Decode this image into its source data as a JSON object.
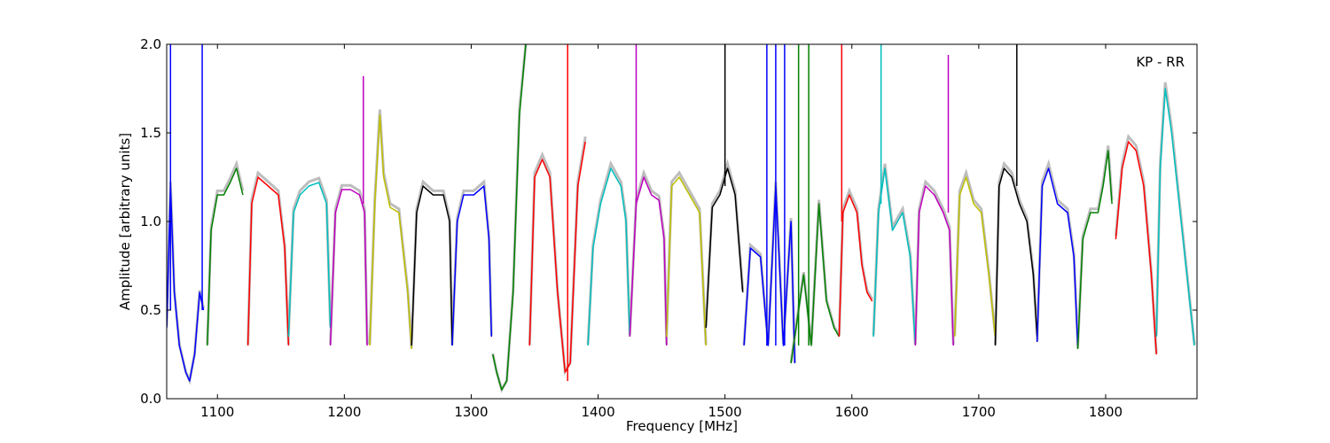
{
  "chart_data": {
    "type": "line",
    "title": "",
    "annotation": "KP - RR",
    "xlabel": "Frequency [MHz]",
    "ylabel": "Amplitude [arbitrary units]",
    "xlim": [
      1060,
      1872
    ],
    "ylim": [
      0.0,
      2.0
    ],
    "xticks": [
      1100,
      1200,
      1300,
      1400,
      1500,
      1600,
      1700,
      1800
    ],
    "yticks": [
      0.0,
      0.5,
      1.0,
      1.5,
      2.0
    ],
    "ytick_labels": [
      "0.0",
      "0.5",
      "1.0",
      "1.5",
      "2.0"
    ],
    "grid": false,
    "background_color": "#bdbdbd",
    "bands": [
      {
        "color": "#0000ff",
        "x": [
          1060,
          1063,
          1066,
          1070,
          1075,
          1078,
          1082,
          1086,
          1089
        ],
        "y": [
          0.4,
          1.2,
          0.6,
          0.3,
          0.15,
          0.1,
          0.25,
          0.6,
          0.5
        ]
      },
      {
        "color": "#008000",
        "x": [
          1092,
          1095,
          1100,
          1105,
          1110,
          1115,
          1120
        ],
        "y": [
          0.3,
          0.95,
          1.15,
          1.15,
          1.22,
          1.3,
          1.15
        ]
      },
      {
        "color": "#ff0000",
        "x": [
          1124,
          1127,
          1132,
          1140,
          1148,
          1153,
          1156
        ],
        "y": [
          0.3,
          1.1,
          1.25,
          1.2,
          1.15,
          0.85,
          0.3
        ]
      },
      {
        "color": "#00bfbf",
        "x": [
          1156,
          1160,
          1165,
          1172,
          1180,
          1186,
          1189
        ],
        "y": [
          0.35,
          1.05,
          1.15,
          1.2,
          1.22,
          1.1,
          0.4
        ]
      },
      {
        "color": "#bf00bf",
        "x": [
          1189,
          1193,
          1198,
          1205,
          1212,
          1216,
          1218
        ],
        "y": [
          0.3,
          1.05,
          1.18,
          1.18,
          1.15,
          1.05,
          0.3
        ]
      },
      {
        "color": "#bfbf00",
        "x": [
          1220,
          1224,
          1228,
          1231,
          1236,
          1243,
          1250,
          1253
        ],
        "y": [
          0.3,
          1.1,
          1.6,
          1.25,
          1.08,
          1.05,
          0.6,
          0.28
        ]
      },
      {
        "color": "#000000",
        "x": [
          1253,
          1257,
          1262,
          1270,
          1278,
          1283,
          1285
        ],
        "y": [
          0.3,
          1.05,
          1.2,
          1.15,
          1.15,
          1.0,
          0.3
        ]
      },
      {
        "color": "#0000ff",
        "x": [
          1285,
          1289,
          1294,
          1302,
          1310,
          1314,
          1316
        ],
        "y": [
          0.3,
          1.0,
          1.15,
          1.15,
          1.2,
          0.9,
          0.35
        ]
      },
      {
        "color": "#008000",
        "x": [
          1317,
          1320,
          1324,
          1328,
          1333,
          1338,
          1343
        ],
        "y": [
          0.25,
          0.15,
          0.05,
          0.1,
          0.6,
          1.6,
          2.0
        ]
      },
      {
        "color": "#ff0000",
        "x": [
          1346,
          1350,
          1356,
          1362,
          1368,
          1374,
          1378,
          1384,
          1390
        ],
        "y": [
          0.3,
          1.25,
          1.35,
          1.25,
          0.6,
          0.15,
          0.2,
          1.2,
          1.45
        ]
      },
      {
        "color": "#00bfbf",
        "x": [
          1392,
          1396,
          1402,
          1410,
          1418,
          1422,
          1425
        ],
        "y": [
          0.3,
          0.85,
          1.1,
          1.3,
          1.2,
          1.0,
          0.35
        ]
      },
      {
        "color": "#bf00bf",
        "x": [
          1425,
          1430,
          1436,
          1442,
          1448,
          1452,
          1454
        ],
        "y": [
          0.35,
          1.1,
          1.25,
          1.15,
          1.12,
          0.9,
          0.3
        ]
      },
      {
        "color": "#bfbf00",
        "x": [
          1454,
          1458,
          1464,
          1472,
          1480,
          1485
        ],
        "y": [
          0.35,
          1.2,
          1.25,
          1.15,
          1.05,
          0.3
        ]
      },
      {
        "color": "#000000",
        "x": [
          1485,
          1490,
          1496,
          1502,
          1508,
          1514
        ],
        "y": [
          0.4,
          1.08,
          1.15,
          1.3,
          1.15,
          0.6
        ]
      },
      {
        "color": "#0000ff",
        "x": [
          1515,
          1520,
          1528,
          1534,
          1540,
          1546,
          1552,
          1555
        ],
        "y": [
          0.3,
          0.85,
          0.8,
          0.3,
          1.2,
          0.3,
          1.0,
          0.2
        ]
      },
      {
        "color": "#008000",
        "x": [
          1552,
          1556,
          1562,
          1568,
          1574,
          1580,
          1586,
          1590
        ],
        "y": [
          0.2,
          0.4,
          0.7,
          0.3,
          1.1,
          0.55,
          0.4,
          0.35
        ]
      },
      {
        "color": "#ff0000",
        "x": [
          1590,
          1593,
          1598,
          1604,
          1608,
          1612,
          1616
        ],
        "y": [
          0.35,
          1.05,
          1.15,
          1.05,
          0.75,
          0.6,
          0.55
        ]
      },
      {
        "color": "#00bfbf",
        "x": [
          1617,
          1621,
          1626,
          1632,
          1640,
          1646,
          1650
        ],
        "y": [
          0.35,
          1.05,
          1.3,
          0.95,
          1.05,
          0.8,
          0.3
        ]
      },
      {
        "color": "#bf00bf",
        "x": [
          1650,
          1653,
          1658,
          1665,
          1672,
          1677,
          1680
        ],
        "y": [
          0.3,
          1.05,
          1.2,
          1.15,
          1.05,
          0.95,
          0.3
        ]
      },
      {
        "color": "#bfbf00",
        "x": [
          1681,
          1685,
          1690,
          1696,
          1702,
          1708,
          1713
        ],
        "y": [
          0.35,
          1.15,
          1.25,
          1.1,
          1.05,
          0.7,
          0.35
        ]
      },
      {
        "color": "#000000",
        "x": [
          1713,
          1716,
          1720,
          1726,
          1732,
          1738,
          1743,
          1746
        ],
        "y": [
          0.3,
          1.2,
          1.3,
          1.25,
          1.1,
          1.0,
          0.7,
          0.35
        ]
      },
      {
        "color": "#0000ff",
        "x": [
          1746,
          1750,
          1755,
          1762,
          1770,
          1775,
          1778
        ],
        "y": [
          0.32,
          1.2,
          1.3,
          1.1,
          1.05,
          0.8,
          0.3
        ]
      },
      {
        "color": "#008000",
        "x": [
          1778,
          1782,
          1788,
          1794,
          1798,
          1802,
          1805
        ],
        "y": [
          0.28,
          0.9,
          1.05,
          1.05,
          1.2,
          1.4,
          1.1
        ]
      },
      {
        "color": "#ff0000",
        "x": [
          1808,
          1813,
          1818,
          1824,
          1830,
          1836,
          1840
        ],
        "y": [
          0.9,
          1.3,
          1.45,
          1.4,
          1.2,
          0.7,
          0.25
        ]
      },
      {
        "color": "#00bfbf",
        "x": [
          1840,
          1843,
          1847,
          1852,
          1858,
          1864,
          1870
        ],
        "y": [
          0.35,
          1.3,
          1.75,
          1.5,
          1.1,
          0.7,
          0.3
        ]
      }
    ],
    "spikes": [
      {
        "color": "#0000ff",
        "x": 1063,
        "y0": 0.5,
        "y1": 2.0
      },
      {
        "color": "#0000ff",
        "x": 1088,
        "y0": 0.5,
        "y1": 2.0
      },
      {
        "color": "#ff0000",
        "x": 1376,
        "y0": 0.1,
        "y1": 2.0
      },
      {
        "color": "#bf00bf",
        "x": 1430,
        "y0": 1.1,
        "y1": 2.0
      },
      {
        "color": "#000000",
        "x": 1500,
        "y0": 1.2,
        "y1": 2.0
      },
      {
        "color": "#000000",
        "x": 1730,
        "y0": 1.2,
        "y1": 2.0
      },
      {
        "color": "#bf00bf",
        "x": 1215,
        "y0": 1.1,
        "y1": 1.82
      },
      {
        "color": "#bf00bf",
        "x": 1676,
        "y0": 1.05,
        "y1": 1.94
      },
      {
        "color": "#0000ff",
        "x": 1533,
        "y0": 0.3,
        "y1": 2.0
      },
      {
        "color": "#0000ff",
        "x": 1540,
        "y0": 0.3,
        "y1": 2.0
      },
      {
        "color": "#0000ff",
        "x": 1547,
        "y0": 0.3,
        "y1": 2.0
      },
      {
        "color": "#008000",
        "x": 1558,
        "y0": 0.3,
        "y1": 2.0
      },
      {
        "color": "#008000",
        "x": 1566,
        "y0": 0.3,
        "y1": 2.0
      },
      {
        "color": "#ff0000",
        "x": 1592,
        "y0": 1.0,
        "y1": 2.0
      },
      {
        "color": "#00bfbf",
        "x": 1623,
        "y0": 1.1,
        "y1": 2.0
      }
    ]
  }
}
